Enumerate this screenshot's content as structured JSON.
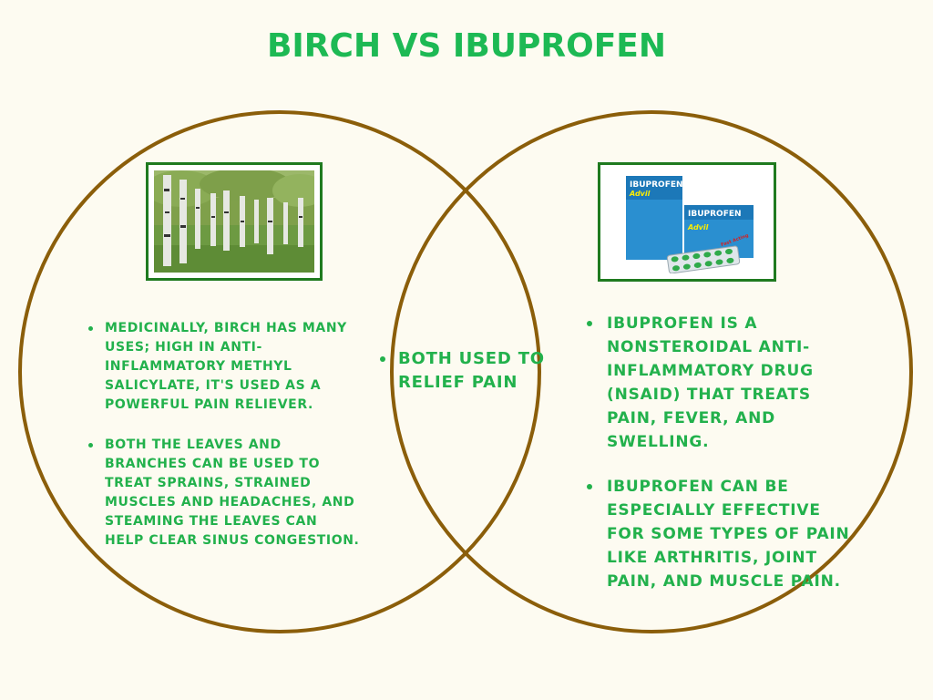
{
  "title": "BIRCH VS IBUPROFEN",
  "colors": {
    "background": "#fdfbf1",
    "title": "#1db954",
    "text": "#22b14c",
    "circle_outline": "#8b5e0a",
    "frame": "#1f7a1f"
  },
  "left": {
    "image": "birch-trees-photo",
    "bullets": [
      "Medicinally, birch has many uses; high in anti-inflammatory methyl salicylate, it's used as a powerful pain reliever.",
      "Both the leaves and branches can be used to treat sprains, strained muscles and headaches, and steaming the leaves can help clear sinus congestion."
    ]
  },
  "overlap": {
    "bullets": [
      "Both used to relief pain"
    ]
  },
  "right": {
    "image": "ibuprofen-advil-boxes-photo",
    "image_texts": [
      "IBUPROFEN",
      "Advil",
      "Fast Acting"
    ],
    "bullets": [
      "Ibuprofen is a nonsteroidal anti-inflammatory drug (NSAID) that treats pain, fever, and swelling.",
      "Ibuprofen can be especially effective for some types of pain like arthritis, joint pain, and muscle pain."
    ]
  }
}
